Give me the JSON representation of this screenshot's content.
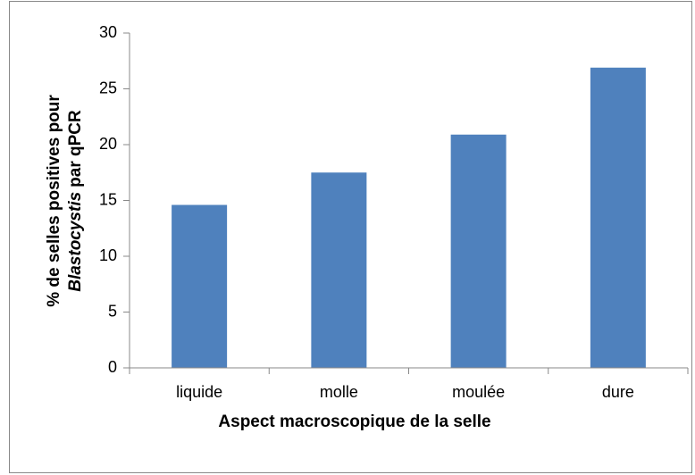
{
  "chart_data": {
    "type": "bar",
    "xlabel": "Aspect macroscopique de la selle",
    "ylabel": {
      "line1": "% de selles positives pour",
      "line2_italic": "Blastocystis",
      "line2_rest": "par qPCR"
    },
    "categories": [
      "liquide",
      "molle",
      "moulée",
      "dure"
    ],
    "values": [
      14.6,
      17.5,
      20.9,
      26.9
    ],
    "color": "#4f81bd",
    "ylim": [
      0,
      30
    ],
    "yticks": [
      0,
      5,
      10,
      15,
      20,
      25,
      30
    ],
    "grid": false
  }
}
